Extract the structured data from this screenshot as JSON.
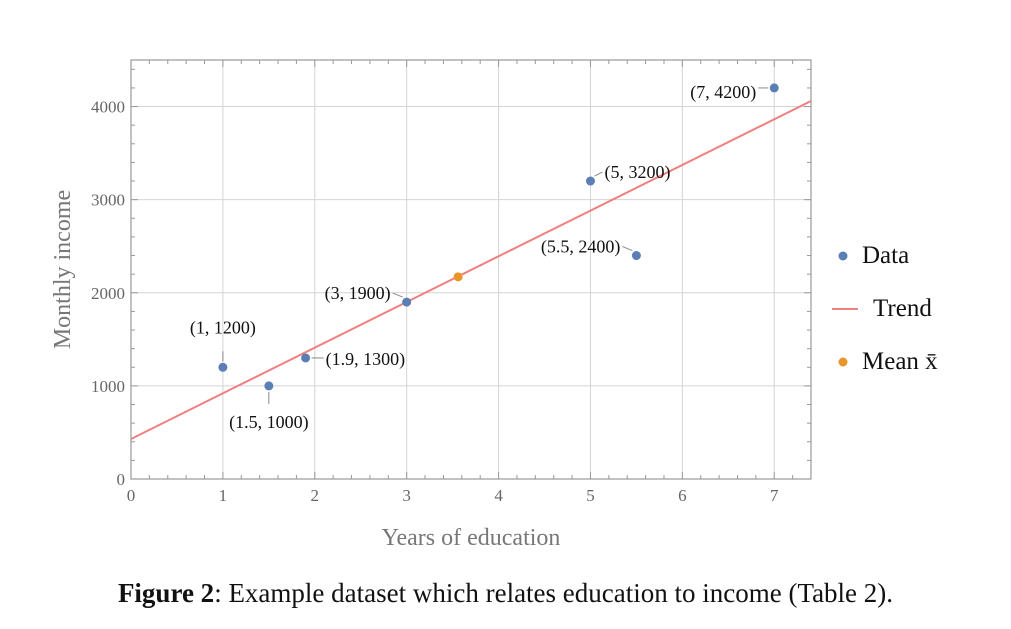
{
  "chart_data": {
    "type": "scatter",
    "xlabel": "Years of education",
    "ylabel": "Monthly income",
    "xlim": [
      0,
      7.4
    ],
    "ylim": [
      0,
      4500
    ],
    "x_ticks": [
      0,
      1,
      2,
      3,
      4,
      5,
      6,
      7
    ],
    "y_ticks": [
      0,
      1000,
      2000,
      3000,
      4000
    ],
    "grid": true,
    "legend_position": "right",
    "series": [
      {
        "name": "Data",
        "color": "#5b7fb5",
        "points": [
          {
            "x": 1,
            "y": 1200,
            "label": "(1, 1200)"
          },
          {
            "x": 1.5,
            "y": 1000,
            "label": "(1.5, 1000)"
          },
          {
            "x": 1.9,
            "y": 1300,
            "label": "(1.9, 1300)"
          },
          {
            "x": 3,
            "y": 1900,
            "label": "(3, 1900)"
          },
          {
            "x": 5,
            "y": 3200,
            "label": "(5, 3200)"
          },
          {
            "x": 5.5,
            "y": 2400,
            "label": "(5.5, 2400)"
          },
          {
            "x": 7,
            "y": 4200,
            "label": "(7, 4200)"
          }
        ]
      },
      {
        "name": "Trend",
        "color": "#f08080",
        "line": [
          {
            "x": 0,
            "y": 430
          },
          {
            "x": 7.4,
            "y": 4060
          }
        ]
      },
      {
        "name": "Mean x̄",
        "color": "#e8952a",
        "points": [
          {
            "x": 3.56,
            "y": 2171
          }
        ]
      }
    ]
  },
  "caption": {
    "figure_label": "Figure 2",
    "text": ": Example dataset which relates education to income (Table 2)."
  }
}
